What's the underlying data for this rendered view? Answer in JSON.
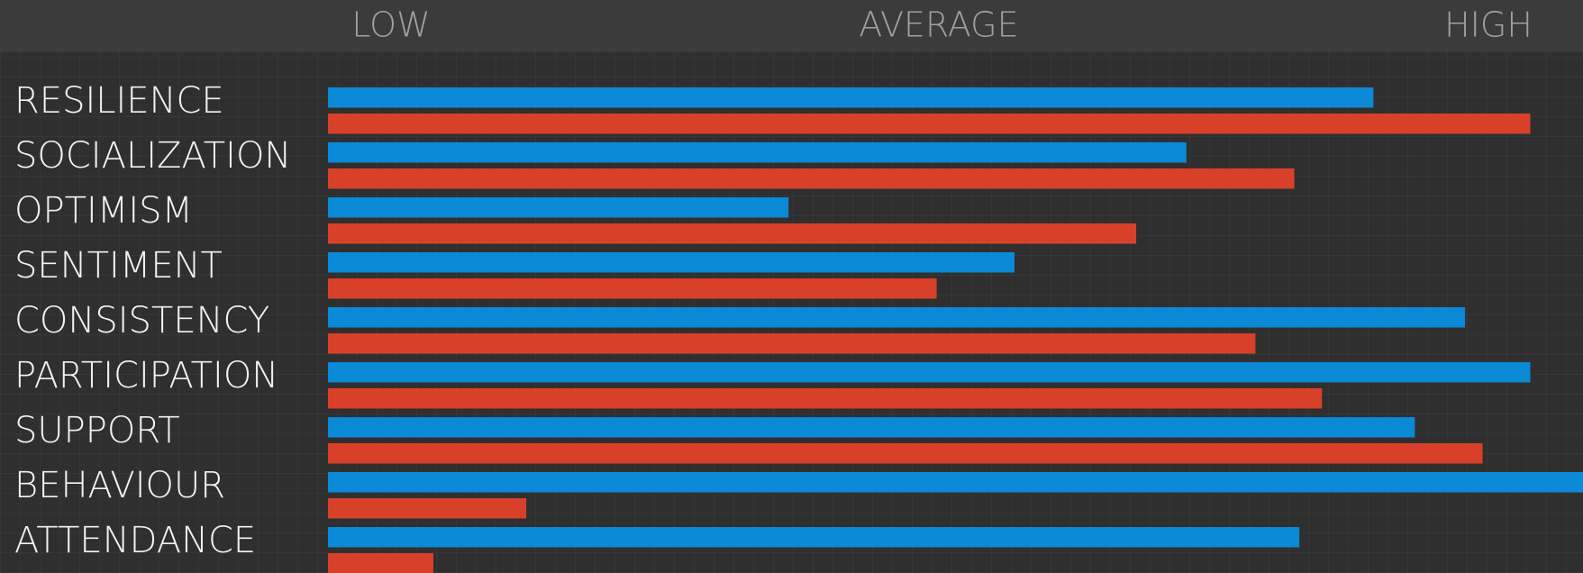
{
  "chart_data": {
    "type": "hbar",
    "scale_labels": [
      "LOW",
      "AVERAGE",
      "HIGH"
    ],
    "categories": [
      "RESILIENCE",
      "SOCIALIZATION",
      "OPTIMISM",
      "SENTIMENT",
      "CONSISTENCY",
      "PARTICIPATION",
      "SUPPORT",
      "BEHAVIOUR",
      "ATTENDANCE"
    ],
    "series": [
      {
        "color": "#0a8ad6",
        "values": [
          83.3,
          68.4,
          36.7,
          54.7,
          90.6,
          95.8,
          86.6,
          100,
          77.4
        ]
      },
      {
        "color": "#d9402a",
        "values": [
          95.8,
          77.0,
          64.4,
          48.5,
          73.9,
          79.2,
          92.0,
          15.8,
          8.4
        ]
      }
    ],
    "xlim": [
      0,
      100
    ]
  }
}
